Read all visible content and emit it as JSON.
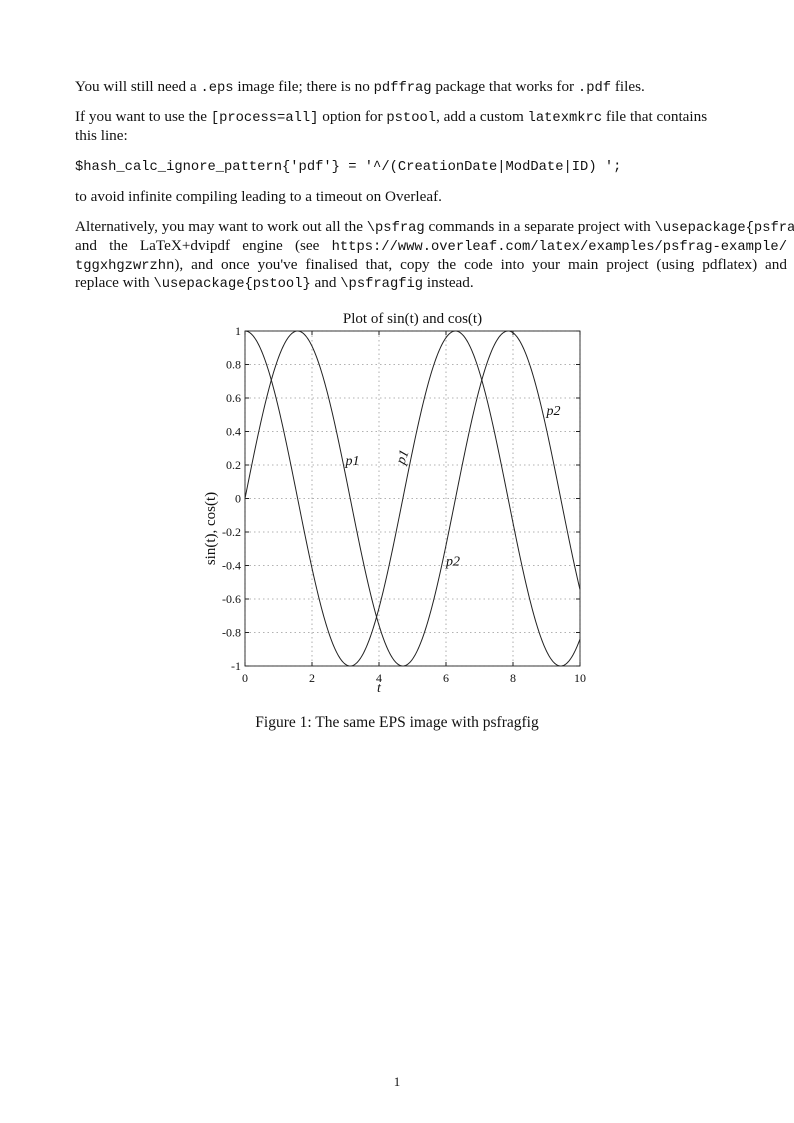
{
  "body": {
    "lines": [
      [
        {
          "t": "You will still need a "
        },
        {
          "t": ".eps",
          "code": true
        },
        {
          "t": " image file; there is no "
        },
        {
          "t": "pdffrag",
          "code": true
        },
        {
          "t": " package that works for "
        },
        {
          "t": ".pdf",
          "code": true
        },
        {
          "t": " files."
        }
      ],
      [
        {
          "t": "If you want to use the "
        },
        {
          "t": "[process=all]",
          "code": true
        },
        {
          "t": " option for "
        },
        {
          "t": "pstool",
          "code": true
        },
        {
          "t": ", add a custom "
        },
        {
          "t": "latexmkrc",
          "code": true
        },
        {
          "t": " file that contains"
        }
      ],
      [
        {
          "t": "this line:"
        }
      ],
      [
        {
          "t": "$hash_calc_ignore_pattern{'pdf'} = '^/(CreationDate|ModDate|ID) ';",
          "code": true
        }
      ],
      [
        {
          "t": "to avoid infinite compiling leading to a timeout on Overleaf."
        }
      ],
      [
        {
          "t": "Alternatively, you may want to work out all the "
        },
        {
          "t": "\\psfrag",
          "code": true
        },
        {
          "t": " commands in a separate project with "
        },
        {
          "t": "\\usepackage{psfrag}",
          "code": true
        }
      ],
      [
        {
          "t": "and the LaTeX+dvipdf engine (see "
        },
        {
          "t": "https://www.overleaf.com/latex/examples/psfrag-example/",
          "code": true
        }
      ],
      [
        {
          "t": "tggxhgzwrzhn",
          "code": true
        },
        {
          "t": "), and once you've finalised that, copy the code into your main project (using pdflatex) and"
        }
      ],
      [
        {
          "t": "replace with "
        },
        {
          "t": "\\usepackage{pstool}",
          "code": true
        },
        {
          "t": " and "
        },
        {
          "t": "\\psfragfig",
          "code": true
        },
        {
          "t": " instead."
        }
      ]
    ]
  },
  "chart_data": {
    "type": "line",
    "title": "Plot of sin(t) and cos(t)",
    "xlabel": "t",
    "ylabel": "sin(t), cos(t)",
    "xlim": [
      0,
      10
    ],
    "ylim": [
      -1,
      1
    ],
    "xticks": [
      "0",
      "2",
      "4",
      "6",
      "8",
      "10"
    ],
    "yticks": [
      "1",
      "0.8",
      "0.6",
      "0.4",
      "0.2",
      "0",
      "-0.2",
      "-0.4",
      "-0.6",
      "-0.8",
      "-1"
    ],
    "grid": true,
    "series": [
      {
        "function": "sin(t)"
      },
      {
        "function": "cos(t)"
      }
    ],
    "annotations": [
      {
        "text": "p1",
        "x": 3.0,
        "y": 0.2,
        "rotated": false
      },
      {
        "text": "p1",
        "x": 4.75,
        "y": 0.2,
        "rotated": true
      },
      {
        "text": "p2",
        "x": 6.0,
        "y": -0.4,
        "rotated": false
      },
      {
        "text": "p2",
        "x": 9.0,
        "y": 0.5,
        "rotated": false
      }
    ],
    "line_color": "#222222"
  },
  "caption": "Figure 1: The same EPS image with psfragfig",
  "page_number": "1"
}
